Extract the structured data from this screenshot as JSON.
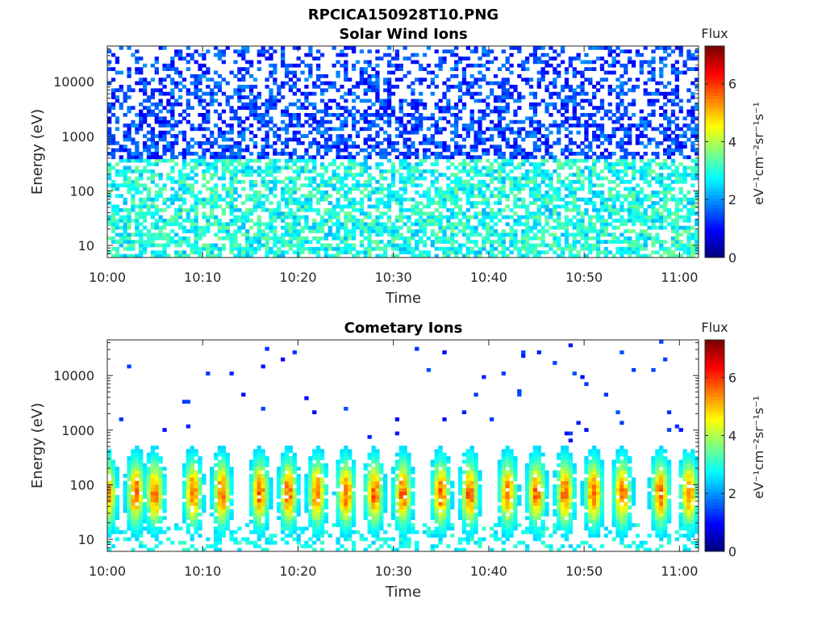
{
  "figure": {
    "title": "RPCICA150928T10.PNG"
  },
  "chart_data": [
    {
      "type": "heatmap",
      "title": "Solar Wind Ions",
      "xlabel": "Time",
      "ylabel": "Energy (eV)",
      "x_tick_labels": [
        "10:00",
        "10:10",
        "10:20",
        "10:30",
        "10:40",
        "10:50",
        "11:00"
      ],
      "xlim": [
        "10:00",
        "11:02"
      ],
      "y_scale": "log",
      "y_tick_labels": [
        "10",
        "100",
        "1000",
        "10000"
      ],
      "ylim": [
        6,
        45000
      ],
      "colorbar": {
        "title": "Flux",
        "label": "eV⁻¹cm⁻²sr⁻¹s⁻¹",
        "ticks": [
          "0",
          "2",
          "4",
          "6"
        ],
        "range": [
          0,
          7.3
        ],
        "colormap": "jet"
      },
      "features": {
        "band_energy_eV": [
          6,
          400
        ],
        "band_flux_range": [
          2.2,
          3.6
        ],
        "sparse_energy_eV": [
          400,
          40000
        ],
        "sparse_flux_range": [
          0.8,
          2.0
        ]
      }
    },
    {
      "type": "heatmap",
      "title": "Cometary Ions",
      "xlabel": "Time",
      "ylabel": "Energy (eV)",
      "x_tick_labels": [
        "10:00",
        "10:10",
        "10:20",
        "10:30",
        "10:40",
        "10:50",
        "11:00"
      ],
      "xlim": [
        "10:00",
        "11:02"
      ],
      "y_scale": "log",
      "y_tick_labels": [
        "10",
        "100",
        "1000",
        "10000"
      ],
      "ylim": [
        6,
        45000
      ],
      "colorbar": {
        "title": "Flux",
        "label": "eV⁻¹cm⁻²sr⁻¹s⁻¹",
        "ticks": [
          "0",
          "2",
          "4",
          "6"
        ],
        "range": [
          0,
          7.3
        ],
        "colormap": "jet"
      },
      "burst_times": [
        "10:00",
        "10:03",
        "10:05",
        "10:09",
        "10:12",
        "10:16",
        "10:19",
        "10:22",
        "10:25",
        "10:28",
        "10:31",
        "10:35",
        "10:38",
        "10:42",
        "10:45",
        "10:48",
        "10:51",
        "10:54",
        "10:58",
        "11:01"
      ],
      "features": {
        "burst_peak_energy_eV": [
          40,
          100
        ],
        "burst_top_energy_eV": 500,
        "peak_flux": 6.2
      }
    }
  ]
}
